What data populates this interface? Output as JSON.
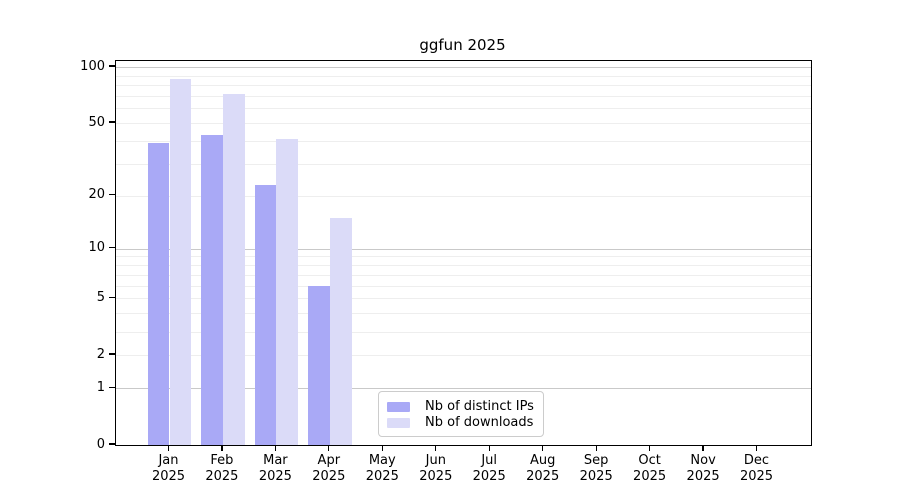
{
  "title": "ggfun 2025",
  "colors": {
    "ips": "#a9a9f6",
    "downloads": "#dbdbf8",
    "grid_major": "#c9c9c9",
    "grid_minor": "#eeeeee",
    "spine": "#000000"
  },
  "legend": {
    "items": [
      {
        "label": "Nb of distinct IPs",
        "series_key": "ips"
      },
      {
        "label": "Nb of downloads",
        "series_key": "downloads"
      }
    ]
  },
  "chart_data": {
    "type": "bar",
    "title": "ggfun 2025",
    "xlabel": "",
    "ylabel": "",
    "categories": [
      "Jan",
      "Feb",
      "Mar",
      "Apr",
      "May",
      "Jun",
      "Jul",
      "Aug",
      "Sep",
      "Oct",
      "Nov",
      "Dec"
    ],
    "category_year": "2025",
    "series": [
      {
        "name": "Nb of distinct IPs",
        "color_key": "ips",
        "values": [
          39,
          43,
          23,
          6,
          0,
          0,
          0,
          0,
          0,
          0,
          0,
          0
        ]
      },
      {
        "name": "Nb of downloads",
        "color_key": "downloads",
        "values": [
          86,
          72,
          41,
          15,
          0,
          0,
          0,
          0,
          0,
          0,
          0,
          0
        ]
      }
    ],
    "yscale": "log10(value+1)",
    "ylim": [
      0,
      100
    ],
    "yticks": [
      0,
      1,
      2,
      5,
      10,
      20,
      50,
      100
    ],
    "grid_major_values": [
      1,
      10,
      100
    ],
    "grid_minor_values": [
      2,
      3,
      4,
      5,
      6,
      7,
      8,
      9,
      20,
      30,
      40,
      50,
      60,
      70,
      80,
      90
    ],
    "grid": "horizontal",
    "legend_position": "lower center-right"
  }
}
